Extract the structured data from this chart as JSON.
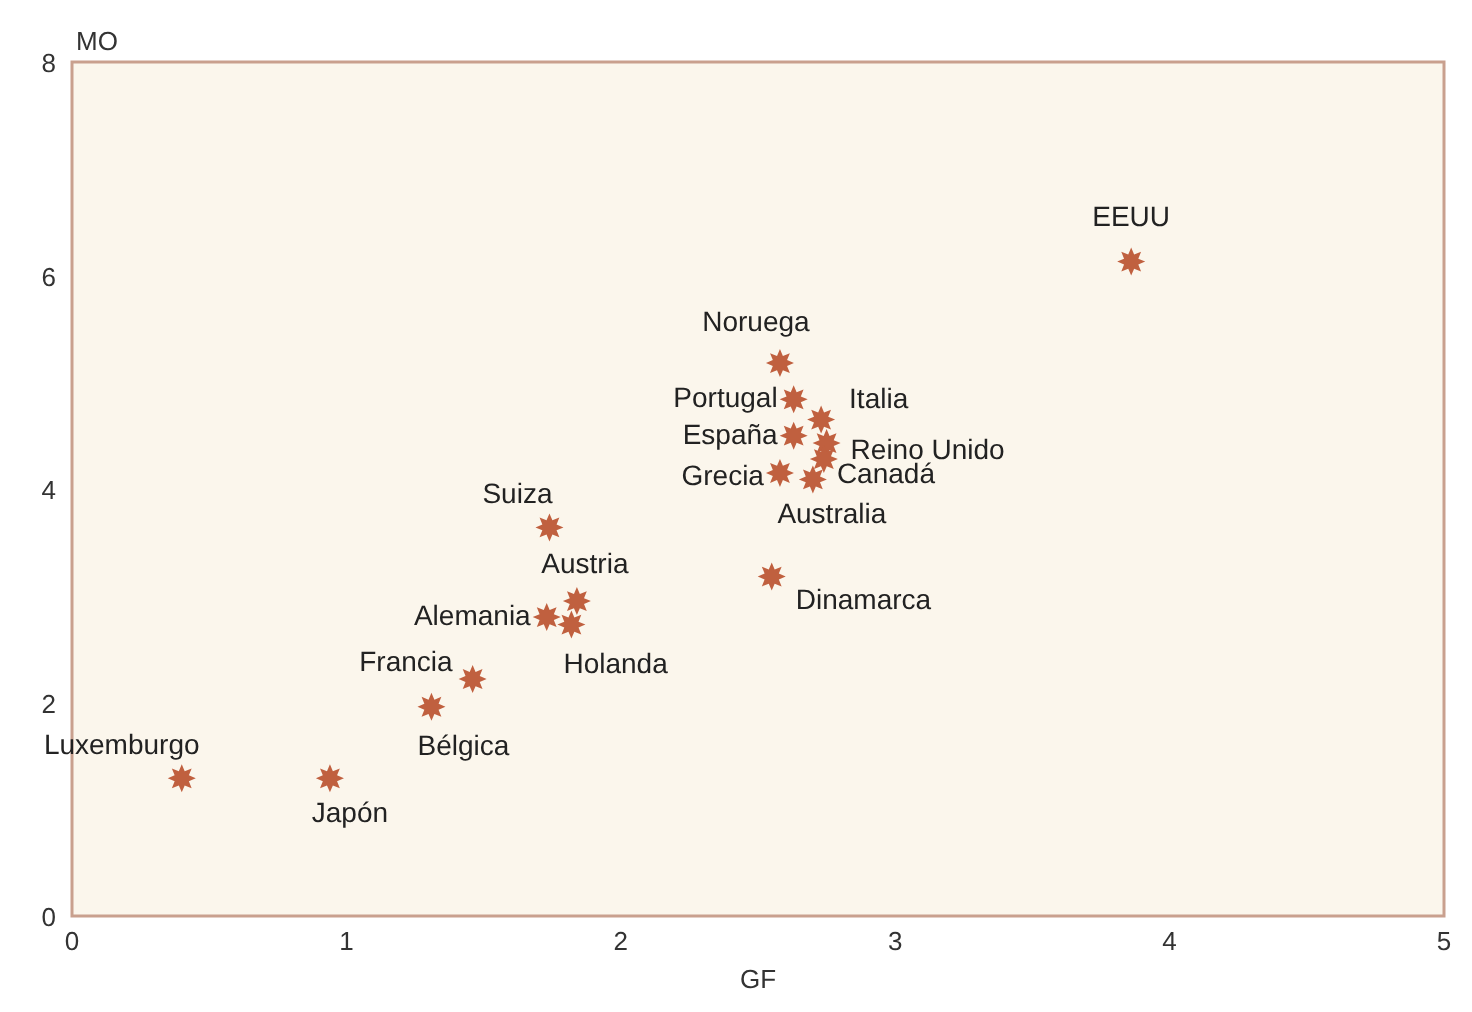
{
  "chart_data": {
    "type": "scatter",
    "xlabel": "GF",
    "ylabel": "MO",
    "xlim": [
      0,
      5
    ],
    "ylim": [
      0,
      8
    ],
    "xticks": [
      0,
      1,
      2,
      3,
      4,
      5
    ],
    "yticks": [
      0,
      2,
      4,
      6,
      8
    ],
    "grid": false,
    "marker": "star",
    "series": [
      {
        "color": "#c0603f",
        "x": [
          3.86,
          2.58,
          2.63,
          2.73,
          2.63,
          2.75,
          2.58,
          2.7,
          2.74,
          2.55,
          1.74,
          1.84,
          1.73,
          1.82,
          1.46,
          1.31,
          0.4,
          0.94
        ],
        "values": [
          6.13,
          5.18,
          4.84,
          4.65,
          4.5,
          4.43,
          4.15,
          4.09,
          4.28,
          3.18,
          3.64,
          2.95,
          2.8,
          2.73,
          2.22,
          1.96,
          1.29,
          1.29
        ]
      }
    ],
    "annotations": [
      {
        "text": "EEUU",
        "x": 3.86,
        "y": 6.13
      },
      {
        "text": "Noruega",
        "x": 2.58,
        "y": 5.18
      },
      {
        "text": "Portugal",
        "x": 2.63,
        "y": 4.84
      },
      {
        "text": "Italia",
        "x": 2.73,
        "y": 4.65
      },
      {
        "text": "España",
        "x": 2.63,
        "y": 4.5
      },
      {
        "text": "Reino Unido",
        "x": 2.75,
        "y": 4.43
      },
      {
        "text": "Grecia",
        "x": 2.58,
        "y": 4.15
      },
      {
        "text": "Canadá",
        "x": 2.7,
        "y": 4.09
      },
      {
        "text": "Australia",
        "x": 2.74,
        "y": 4.28
      },
      {
        "text": "Dinamarca",
        "x": 2.55,
        "y": 3.18
      },
      {
        "text": "Suiza",
        "x": 1.74,
        "y": 3.64
      },
      {
        "text": "Austria",
        "x": 1.84,
        "y": 2.95
      },
      {
        "text": "Alemania",
        "x": 1.73,
        "y": 2.8
      },
      {
        "text": "Holanda",
        "x": 1.82,
        "y": 2.73
      },
      {
        "text": "Francia",
        "x": 1.46,
        "y": 2.22
      },
      {
        "text": "Bélgica",
        "x": 1.31,
        "y": 1.96
      },
      {
        "text": "Luxemburgo",
        "x": 0.4,
        "y": 1.29
      },
      {
        "text": "Japón",
        "x": 0.94,
        "y": 1.29
      }
    ]
  }
}
